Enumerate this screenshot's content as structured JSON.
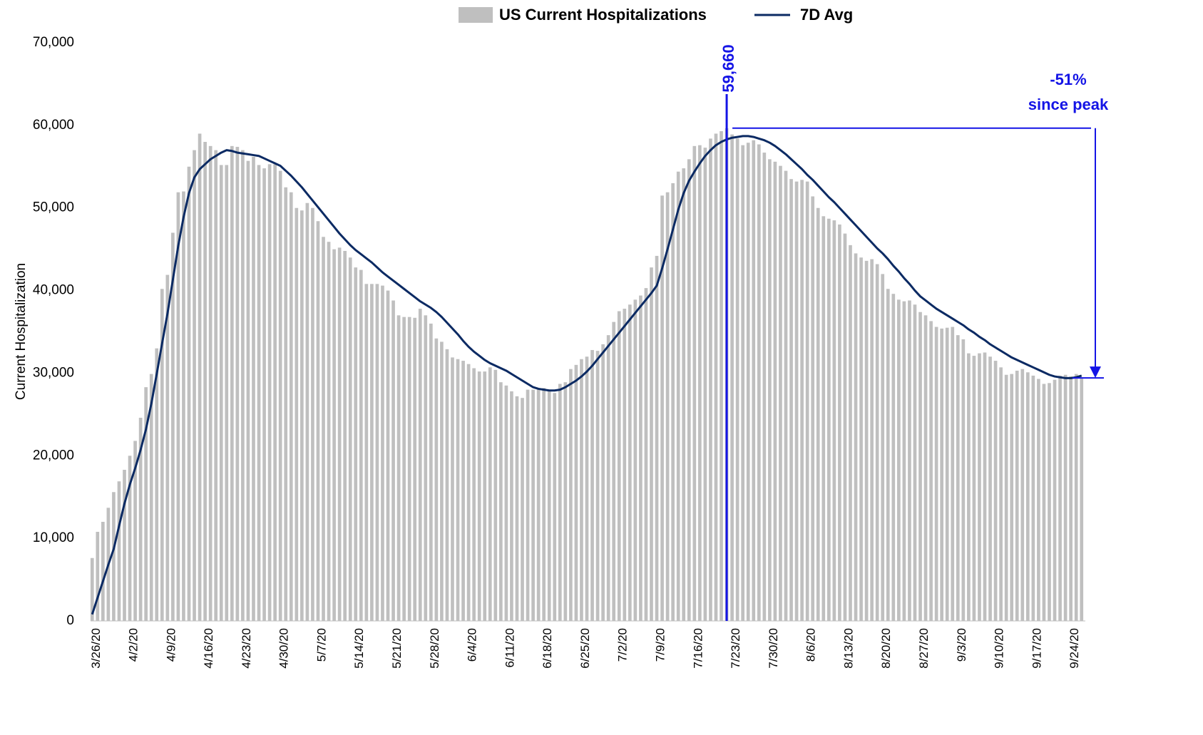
{
  "chart_data": {
    "type": "bar",
    "y_label": "Current Hospitalization",
    "ylim": [
      0,
      70000
    ],
    "yticks": [
      0,
      {
        "value": 10000,
        "label": "10,000"
      },
      {
        "value": 20000,
        "label": "20,000"
      },
      {
        "value": 30000,
        "label": "30,000"
      },
      {
        "value": 40000,
        "label": "40,000"
      },
      {
        "value": 50000,
        "label": "50,000"
      },
      {
        "value": 60000,
        "label": "60,000"
      },
      {
        "value": 70000,
        "label": "70,000"
      }
    ],
    "grid": false,
    "legend": "top",
    "categories": [
      "3/26/20",
      null,
      null,
      null,
      null,
      null,
      null,
      "4/2/20",
      null,
      null,
      null,
      null,
      null,
      null,
      "4/9/20",
      null,
      null,
      null,
      null,
      null,
      null,
      "4/16/20",
      null,
      null,
      null,
      null,
      null,
      null,
      "4/23/20",
      null,
      null,
      null,
      null,
      null,
      null,
      "4/30/20",
      null,
      null,
      null,
      null,
      null,
      null,
      "5/7/20",
      null,
      null,
      null,
      null,
      null,
      null,
      "5/14/20",
      null,
      null,
      null,
      null,
      null,
      null,
      "5/21/20",
      null,
      null,
      null,
      null,
      null,
      null,
      "5/28/20",
      null,
      null,
      null,
      null,
      null,
      null,
      "6/4/20",
      null,
      null,
      null,
      null,
      null,
      null,
      "6/11/20",
      null,
      null,
      null,
      null,
      null,
      null,
      "6/18/20",
      null,
      null,
      null,
      null,
      null,
      null,
      "6/25/20",
      null,
      null,
      null,
      null,
      null,
      null,
      "7/2/20",
      null,
      null,
      null,
      null,
      null,
      null,
      "7/9/20",
      null,
      null,
      null,
      null,
      null,
      null,
      "7/16/20",
      null,
      null,
      null,
      null,
      null,
      null,
      "7/23/20",
      null,
      null,
      null,
      null,
      null,
      null,
      "7/30/20",
      null,
      null,
      null,
      null,
      null,
      null,
      "8/6/20",
      null,
      null,
      null,
      null,
      null,
      null,
      "8/13/20",
      null,
      null,
      null,
      null,
      null,
      null,
      "8/20/20",
      null,
      null,
      null,
      null,
      null,
      null,
      "8/27/20",
      null,
      null,
      null,
      null,
      null,
      null,
      "9/3/20",
      null,
      null,
      null,
      null,
      null,
      null,
      "9/10/20",
      null,
      null,
      null,
      null,
      null,
      null,
      "9/17/20",
      null,
      null,
      null,
      null,
      null,
      null,
      "9/24/20",
      null,
      null
    ],
    "series": [
      {
        "name": "US Current Hospitalizations",
        "type": "bar",
        "color": "#bfbfbf",
        "values": [
          7617,
          10789,
          12000,
          13700,
          15600,
          16900,
          18300,
          20000,
          21800,
          24600,
          28300,
          29900,
          33000,
          40200,
          41900,
          47000,
          51900,
          52000,
          55000,
          57000,
          59000,
          58000,
          57500,
          57000,
          55200,
          55200,
          57500,
          57400,
          57000,
          55700,
          56200,
          55200,
          54800,
          55300,
          55300,
          54500,
          52500,
          51900,
          50000,
          49700,
          50600,
          50000,
          48400,
          46500,
          45900,
          45000,
          45200,
          44800,
          44000,
          42800,
          42500,
          40800,
          40800,
          40800,
          40600,
          40000,
          38800,
          37000,
          36800,
          36800,
          36700,
          37800,
          37000,
          36000,
          34200,
          33800,
          32900,
          31900,
          31700,
          31500,
          31100,
          30600,
          30200,
          30200,
          30700,
          30400,
          28900,
          28500,
          27800,
          27200,
          27000,
          28000,
          28000,
          28000,
          28200,
          27800,
          27600,
          28700,
          28900,
          30500,
          31000,
          31700,
          32000,
          32800,
          32700,
          33500,
          34600,
          36200,
          37500,
          37800,
          38300,
          38900,
          39400,
          40300,
          42800,
          44200,
          51500,
          51900,
          53000,
          54400,
          54800,
          55900,
          57500,
          57600,
          57300,
          58400,
          59000,
          59300,
          59660,
          58900,
          58400,
          57600,
          57900,
          58200,
          57700,
          56700,
          55900,
          55600,
          55100,
          54500,
          53500,
          53200,
          53400,
          53200,
          51400,
          50000,
          49000,
          48700,
          48500,
          48000,
          46900,
          45500,
          44500,
          44000,
          43600,
          43800,
          43200,
          42000,
          40200,
          39600,
          38900,
          38700,
          38800,
          38300,
          37400,
          37000,
          36300,
          35600,
          35400,
          35500,
          35600,
          34600,
          34100,
          32400,
          32100,
          32400,
          32500,
          32000,
          31500,
          30700,
          29800,
          29900,
          30300,
          30500,
          30100,
          29700,
          29300,
          28700,
          28800,
          29200,
          29700,
          29800,
          29600,
          29900,
          29420
        ]
      },
      {
        "name": "7D Avg",
        "type": "line",
        "color": "#0b2a63",
        "values": [
          800,
          2800,
          4800,
          6800,
          8700,
          11500,
          14200,
          16500,
          18500,
          20700,
          23200,
          26300,
          29900,
          33600,
          37200,
          41300,
          45400,
          48900,
          51800,
          53700,
          54700,
          55300,
          55900,
          56300,
          56700,
          57000,
          56900,
          56700,
          56600,
          56500,
          56400,
          56300,
          56000,
          55700,
          55400,
          55100,
          54500,
          53900,
          53200,
          52500,
          51700,
          50900,
          50100,
          49300,
          48500,
          47700,
          46900,
          46200,
          45500,
          44900,
          44400,
          43900,
          43400,
          42800,
          42200,
          41700,
          41200,
          40700,
          40200,
          39700,
          39200,
          38700,
          38300,
          37900,
          37400,
          36800,
          36100,
          35400,
          34700,
          33900,
          33200,
          32600,
          32100,
          31600,
          31200,
          30900,
          30600,
          30300,
          29900,
          29500,
          29100,
          28700,
          28300,
          28100,
          28000,
          27900,
          27900,
          28000,
          28300,
          28700,
          29100,
          29600,
          30200,
          30900,
          31700,
          32500,
          33300,
          34100,
          34900,
          35700,
          36500,
          37300,
          38100,
          38900,
          39700,
          40600,
          42700,
          45000,
          47400,
          49800,
          51800,
          53300,
          54400,
          55400,
          56300,
          57000,
          57600,
          58000,
          58300,
          58500,
          58600,
          58700,
          58700,
          58600,
          58400,
          58200,
          57900,
          57500,
          57000,
          56500,
          55900,
          55300,
          54700,
          54000,
          53400,
          52700,
          52000,
          51300,
          50700,
          50000,
          49300,
          48600,
          47900,
          47200,
          46500,
          45800,
          45100,
          44500,
          43800,
          43000,
          42300,
          41500,
          40800,
          40000,
          39300,
          38800,
          38300,
          37800,
          37400,
          37000,
          36600,
          36200,
          35800,
          35300,
          34900,
          34400,
          34000,
          33500,
          33100,
          32700,
          32300,
          31900,
          31600,
          31300,
          31000,
          30700,
          30400,
          30100,
          29800,
          29600,
          29500,
          29400,
          29400,
          29500,
          29700
        ]
      }
    ],
    "peak_label": "59,660",
    "change_label": "-51%",
    "change_note": "since peak",
    "annotation_color": "#1414e6"
  }
}
